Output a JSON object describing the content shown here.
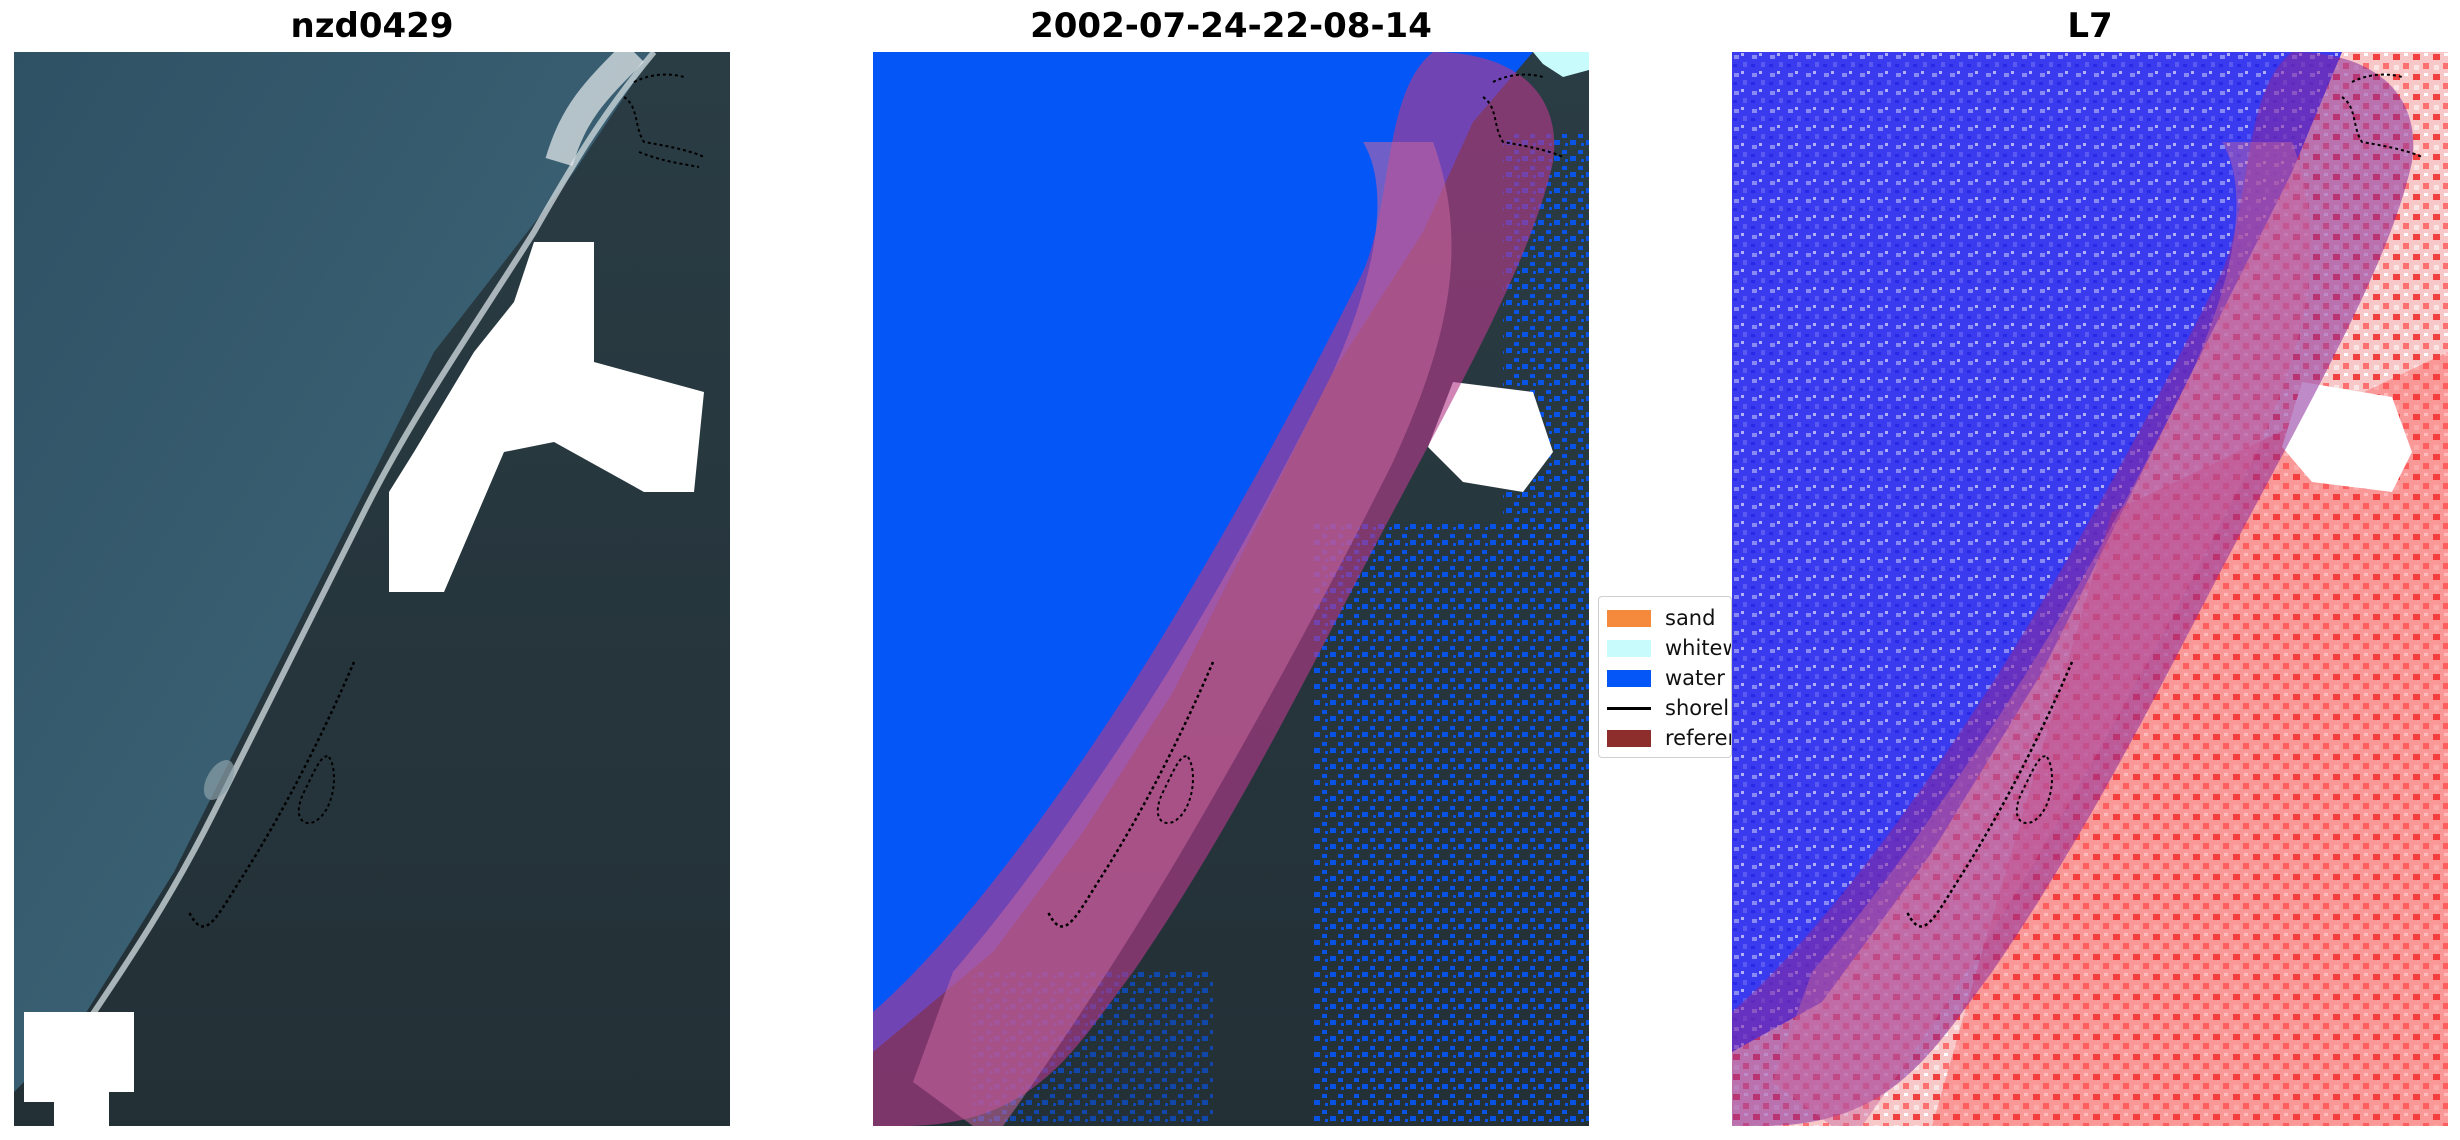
{
  "panels": [
    {
      "title": "nzd0429"
    },
    {
      "title": "2002-07-24-22-08-14"
    },
    {
      "title": "L7"
    }
  ],
  "legend": {
    "items": [
      {
        "label": "sand",
        "color": "#f58a3c",
        "kind": "patch"
      },
      {
        "label": "whitew",
        "color": "#c8fbfb",
        "kind": "patch"
      },
      {
        "label": "water",
        "color": "#0556f7",
        "kind": "patch"
      },
      {
        "label": "shorel",
        "color": "#000000",
        "kind": "line"
      },
      {
        "label": "referen",
        "color": "#8e2e2c",
        "kind": "patch"
      }
    ]
  },
  "colors": {
    "ocean": "#3a5d70",
    "land": "#27353d",
    "buffer_overlay": "#bf5f8f",
    "water_class": "#0556f7",
    "index_positive": "#ff2020",
    "index_negative": "#2020ff"
  }
}
